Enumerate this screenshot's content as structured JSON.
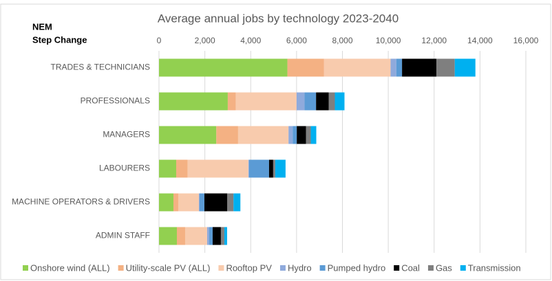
{
  "chart_data": {
    "type": "stacked_bar_horizontal",
    "title": "Average annual jobs by technology 2023-2040",
    "subtitle": [
      "NEM",
      "Step Change"
    ],
    "categories": [
      "TRADES & TECHNICIANS",
      "PROFESSIONALS",
      "MANAGERS",
      "LABOURERS",
      "MACHINE OPERATORS & DRIVERS",
      "ADMIN STAFF"
    ],
    "series": [
      {
        "name": "Onshore wind (ALL)",
        "color": "#92d050",
        "values": [
          5600,
          3000,
          2500,
          750,
          630,
          780
        ]
      },
      {
        "name": "Utility-scale PV (ALL)",
        "color": "#f4b183",
        "values": [
          1600,
          350,
          950,
          500,
          210,
          360
        ]
      },
      {
        "name": "Rooftop PV",
        "color": "#f8cbad",
        "values": [
          2900,
          2650,
          2200,
          2650,
          900,
          960
        ]
      },
      {
        "name": "Hydro",
        "color": "#8faadc",
        "values": [
          250,
          350,
          180,
          30,
          30,
          90
        ]
      },
      {
        "name": "Pumped hydro",
        "color": "#5b9bd5",
        "values": [
          250,
          500,
          180,
          870,
          210,
          150
        ]
      },
      {
        "name": "Coal",
        "color": "#000000",
        "values": [
          1500,
          550,
          400,
          180,
          1000,
          360
        ]
      },
      {
        "name": "Gas",
        "color": "#7f7f7f",
        "values": [
          800,
          270,
          210,
          90,
          270,
          150
        ]
      },
      {
        "name": "Transmission",
        "color": "#00b0f0",
        "values": [
          900,
          420,
          240,
          450,
          300,
          120
        ]
      }
    ],
    "xlim": [
      0,
      16000
    ],
    "xticks": [
      0,
      {
        "value": 2000,
        "label": "2,000"
      },
      {
        "value": 4000,
        "label": "4,000"
      },
      {
        "value": 6000,
        "label": "6,000"
      },
      {
        "value": 8000,
        "label": "8,000"
      },
      {
        "value": 10000,
        "label": "10,000"
      },
      {
        "value": 12000,
        "label": "12,000"
      },
      {
        "value": 14000,
        "label": "14,000"
      },
      {
        "value": 16000,
        "label": "16,000"
      }
    ],
    "grid": true,
    "legend": "bottom"
  }
}
